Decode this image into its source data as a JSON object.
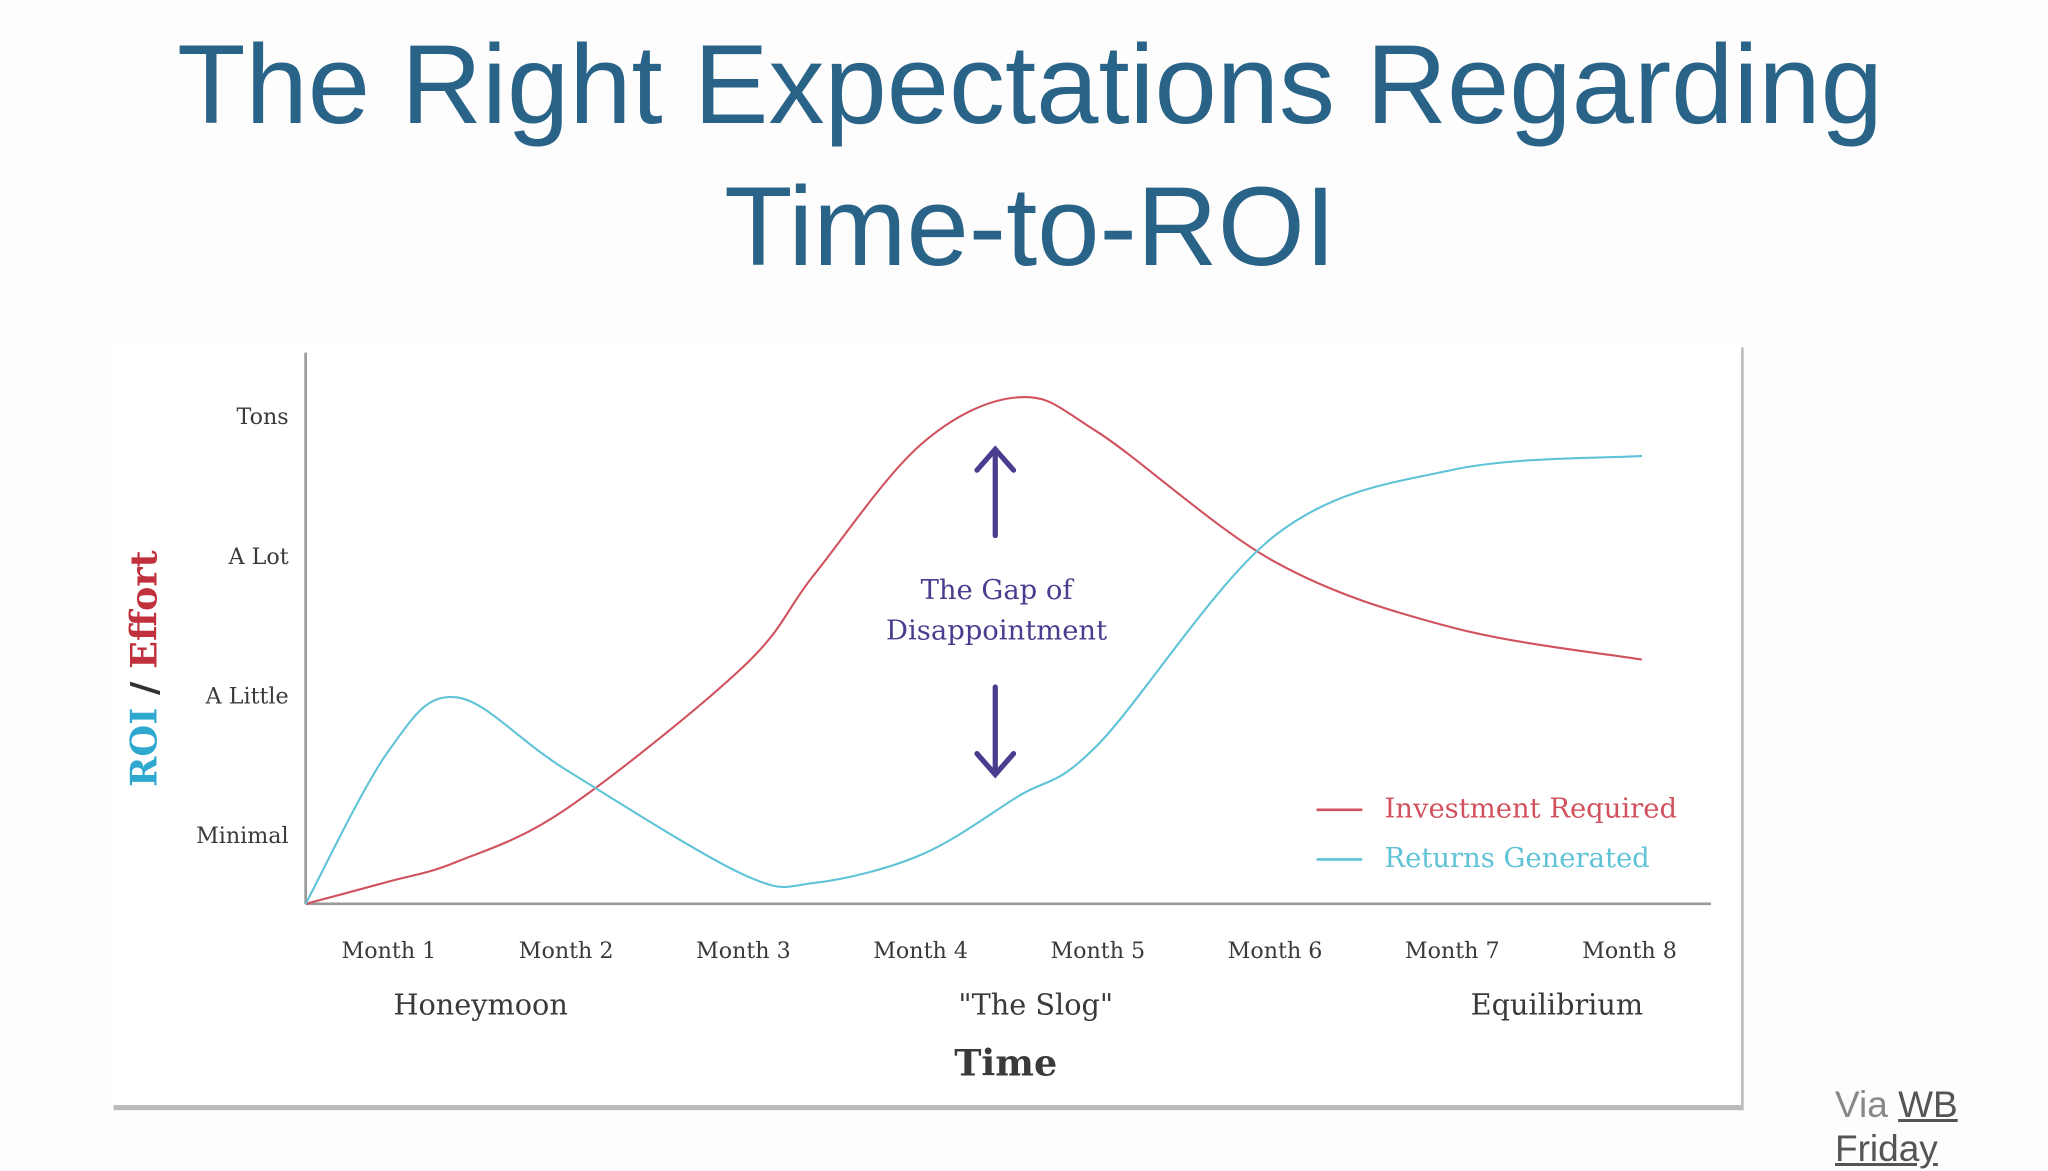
{
  "chart_data": {
    "type": "line",
    "title": "The Right Expectations Regarding Time-to-ROI",
    "x": [
      0.53,
      1,
      1.38,
      2,
      3,
      3.4,
      4,
      4.55,
      5,
      6,
      7,
      8.07
    ],
    "series": [
      {
        "name": "Investment Required",
        "color": "#d0525e",
        "values": [
          0.52,
          0.68,
          0.82,
          1.2,
          2.22,
          2.88,
          3.81,
          4.15,
          3.9,
          2.97,
          2.5,
          2.27
        ]
      },
      {
        "name": "Returns Generated",
        "color": "#5fc3d8",
        "values": [
          0.52,
          1.62,
          2.0,
          1.48,
          0.73,
          0.67,
          0.87,
          1.29,
          1.66,
          3.16,
          3.63,
          3.73
        ]
      }
    ],
    "xlim": [
      0.53,
      8.46
    ],
    "ylim": [
      0.52,
      4.47
    ],
    "xticks": [
      {
        "value": 1,
        "label": "Month 1"
      },
      {
        "value": 2,
        "label": "Month 2"
      },
      {
        "value": 3,
        "label": "Month 3"
      },
      {
        "value": 4,
        "label": "Month 4"
      },
      {
        "value": 5,
        "label": "Month 5"
      },
      {
        "value": 6,
        "label": "Month 6"
      },
      {
        "value": 7,
        "label": "Month 7"
      },
      {
        "value": 8,
        "label": "Month 8"
      }
    ],
    "yticks": [
      {
        "value": 1,
        "label": "Minimal"
      },
      {
        "value": 2,
        "label": "A Little"
      },
      {
        "value": 3,
        "label": "A Lot"
      },
      {
        "value": 4,
        "label": "Tons"
      }
    ],
    "x_label": "Time",
    "y_label": [
      "ROI",
      "/",
      "Effort"
    ],
    "phases": [
      "Honeymoon",
      "\"The Slog\"",
      "Equilibrium"
    ],
    "annotation": [
      "The Gap of",
      "Disappointment"
    ],
    "grid": false,
    "legend": "lower right"
  },
  "credit": {
    "prefix": "Via",
    "link": "WB Friday"
  }
}
